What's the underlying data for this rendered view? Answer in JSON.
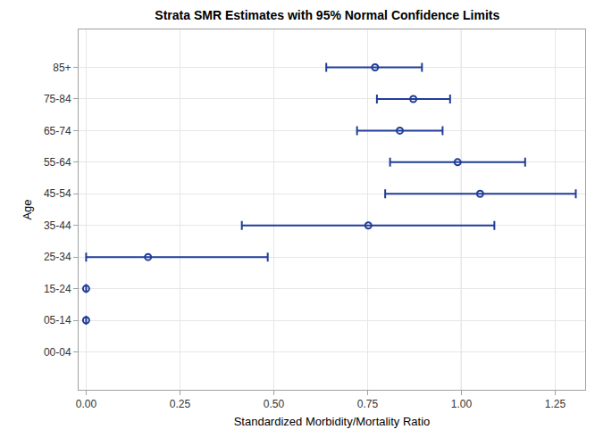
{
  "chart_data": {
    "type": "scatter",
    "title": "Strata SMR Estimates with 95% Normal Confidence Limits",
    "x_label": "Standardized Morbidity/Mortality Ratio",
    "y_label": "Age",
    "categories": [
      "00-04",
      "05-14",
      "15-24",
      "25-34",
      "35-44",
      "45-54",
      "55-64",
      "65-74",
      "75-84",
      "85+"
    ],
    "values": [
      null,
      0,
      0,
      0.165,
      0.752,
      1.05,
      0.99,
      0.836,
      0.872,
      0.77
    ],
    "lower": [
      null,
      null,
      null,
      0.0,
      0.415,
      0.797,
      0.81,
      0.722,
      0.775,
      0.64
    ],
    "upper": [
      null,
      null,
      null,
      0.484,
      1.088,
      1.305,
      1.17,
      0.95,
      0.97,
      0.895
    ],
    "reference_line": 1,
    "xlim": [
      -0.02,
      1.33
    ],
    "xticks": [
      {
        "value": 0,
        "label": "0.00"
      },
      0.25,
      {
        "value": 0.5,
        "label": "0.50"
      },
      0.75,
      {
        "value": 1,
        "label": "1.00"
      },
      1.25
    ],
    "color": "#1f3d99",
    "marker": "circle-open",
    "grid": true
  }
}
